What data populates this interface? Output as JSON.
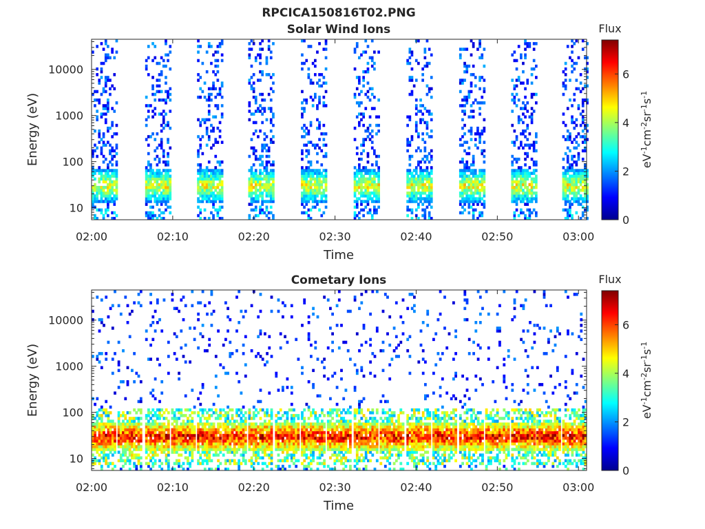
{
  "figure": {
    "title": "RPCICA150816T02.PNG"
  },
  "chart_data": [
    {
      "type": "heatmap",
      "title": "Solar Wind Ions",
      "xlabel": "Time",
      "ylabel": "Energy (eV)",
      "y_scale": "log",
      "x_ticks": [
        "02:00",
        "02:10",
        "02:20",
        "02:30",
        "02:40",
        "02:50",
        "03:00"
      ],
      "y_ticks": [
        "10",
        "100",
        "1000",
        "10000"
      ],
      "colorbar": {
        "label_top": "Flux",
        "range": [
          0,
          7.4
        ],
        "ticks": [
          "0",
          "2",
          "4",
          "6"
        ]
      },
      "sweep_start_minutes": [
        0.0,
        6.6,
        13.0,
        19.3,
        25.8,
        32.3,
        38.8,
        45.3,
        51.7,
        58.0
      ],
      "sweep_duration_minutes": 3.2,
      "low_energy_peak_eV": 30,
      "peak_flux": 5
    },
    {
      "type": "heatmap",
      "title": "Cometary Ions",
      "xlabel": "Time",
      "ylabel": "Energy (eV)",
      "y_scale": "log",
      "x_ticks": [
        "02:00",
        "02:10",
        "02:20",
        "02:30",
        "02:40",
        "02:50",
        "03:00"
      ],
      "y_ticks": [
        "10",
        "100",
        "1000",
        "10000"
      ],
      "colorbar": {
        "label_top": "Flux",
        "range": [
          0,
          7.4
        ],
        "ticks": [
          "0",
          "2",
          "4",
          "6"
        ]
      },
      "sweep_start_minutes": [
        0.0,
        3.2,
        6.6,
        9.8,
        13.0,
        16.1,
        19.3,
        22.6,
        25.8,
        29.0,
        32.3,
        35.5,
        38.8,
        42.0,
        45.3,
        48.5,
        51.7,
        54.8,
        58.0
      ],
      "sweep_duration_minutes": 3.0,
      "low_energy_peak_eV": 30,
      "peak_flux": 7
    }
  ],
  "colorbar_unit_label": {
    "base1": "eV",
    "sup1": "-1",
    "base2": "cm",
    "sup2": "-2",
    "base3": "sr",
    "sup3": "-1",
    "base4": "s",
    "sup4": "-1"
  }
}
